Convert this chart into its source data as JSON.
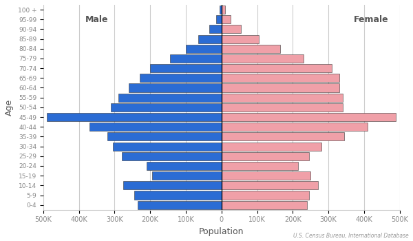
{
  "age_groups": [
    "0-4",
    "5-9",
    "10-14",
    "15-19",
    "20-24",
    "25-29",
    "30-34",
    "35-39",
    "40-44",
    "45-49",
    "50-54",
    "55-59",
    "60-64",
    "65-69",
    "70-74",
    "75-79",
    "80-84",
    "85-89",
    "90-94",
    "95-99",
    "100 +"
  ],
  "male": [
    235000,
    245000,
    275000,
    195000,
    210000,
    280000,
    305000,
    320000,
    370000,
    490000,
    310000,
    290000,
    260000,
    230000,
    200000,
    145000,
    100000,
    65000,
    35000,
    15000,
    5000
  ],
  "female": [
    240000,
    245000,
    270000,
    250000,
    215000,
    245000,
    280000,
    345000,
    410000,
    490000,
    340000,
    340000,
    330000,
    330000,
    310000,
    230000,
    165000,
    105000,
    55000,
    25000,
    10000
  ],
  "male_color": "#2b6cd4",
  "female_color": "#f0a0a8",
  "bar_edgecolor": "#333333",
  "bar_linewidth": 0.4,
  "xlim": [
    -500000,
    500000
  ],
  "xlabel": "Population",
  "ylabel": "Age",
  "male_label": "Male",
  "female_label": "Female",
  "source_text": "U.S. Census Bureau, International Database",
  "bg_color": "#ffffff",
  "grid_color": "#cccccc",
  "tick_label_color": "#888888",
  "axis_label_color": "#555555"
}
